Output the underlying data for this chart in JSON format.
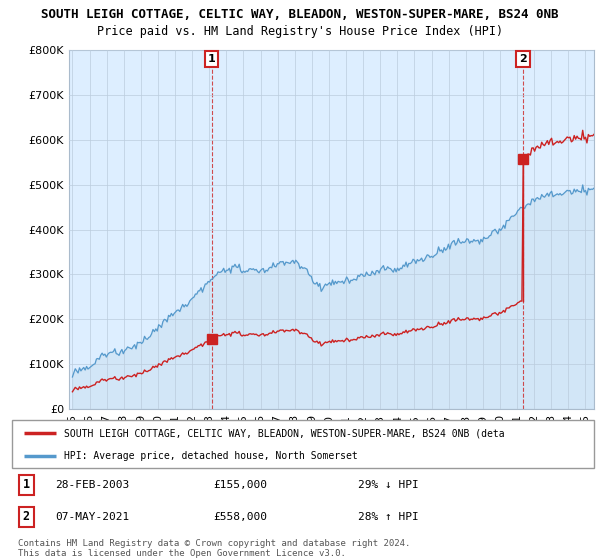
{
  "title": "SOUTH LEIGH COTTAGE, CELTIC WAY, BLEADON, WESTON-SUPER-MARE, BS24 0NB",
  "subtitle": "Price paid vs. HM Land Registry's House Price Index (HPI)",
  "hpi_color": "#5599cc",
  "property_color": "#cc2222",
  "sale1_year": 2003.15,
  "sale1_price": 155000,
  "sale2_year": 2021.35,
  "sale2_price": 558000,
  "ylim": [
    0,
    800000
  ],
  "xlim": [
    1994.8,
    2025.5
  ],
  "yticks": [
    0,
    100000,
    200000,
    300000,
    400000,
    500000,
    600000,
    700000,
    800000
  ],
  "ytick_labels": [
    "£0",
    "£100K",
    "£200K",
    "£300K",
    "£400K",
    "£500K",
    "£600K",
    "£700K",
    "£800K"
  ],
  "xticks": [
    1995,
    1996,
    1997,
    1998,
    1999,
    2000,
    2001,
    2002,
    2003,
    2004,
    2005,
    2006,
    2007,
    2008,
    2009,
    2010,
    2011,
    2012,
    2013,
    2014,
    2015,
    2016,
    2017,
    2018,
    2019,
    2020,
    2021,
    2022,
    2023,
    2024,
    2025
  ],
  "legend_property_label": "SOUTH LEIGH COTTAGE, CELTIC WAY, BLEADON, WESTON-SUPER-MARE, BS24 0NB (deta",
  "legend_hpi_label": "HPI: Average price, detached house, North Somerset",
  "table_row1": [
    "1",
    "28-FEB-2003",
    "£155,000",
    "29% ↓ HPI"
  ],
  "table_row2": [
    "2",
    "07-MAY-2021",
    "£558,000",
    "28% ↑ HPI"
  ],
  "footer": "Contains HM Land Registry data © Crown copyright and database right 2024.\nThis data is licensed under the Open Government Licence v3.0.",
  "dashed_vline_color": "#cc2222",
  "chart_bg_color": "#ddeeff",
  "bg_color": "#ffffff"
}
